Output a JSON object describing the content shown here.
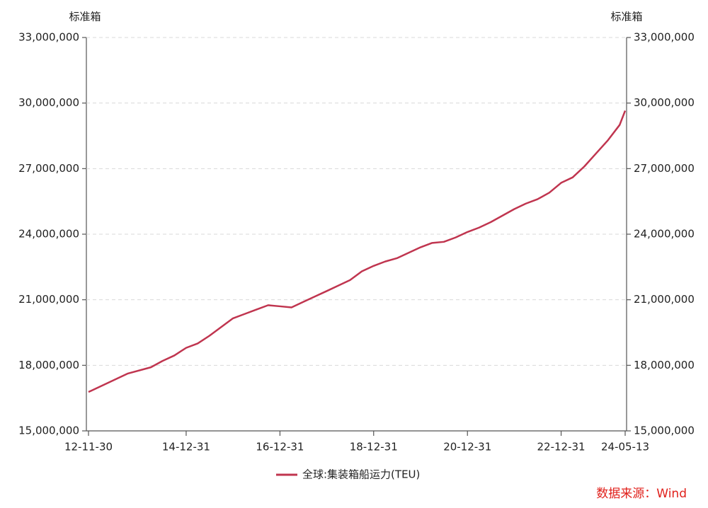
{
  "chart_data": {
    "type": "line",
    "y_label": "标准箱",
    "y2_label": "标准箱",
    "source": "数据来源：Wind",
    "x": [
      "12-11-30",
      "13-09-30",
      "14-03-31",
      "14-06-30",
      "14-09-30",
      "14-12-31",
      "15-03-31",
      "15-06-30",
      "15-09-30",
      "15-12-31",
      "16-03-31",
      "16-06-30",
      "16-09-30",
      "16-12-31",
      "17-03-31",
      "17-06-30",
      "17-09-30",
      "17-12-31",
      "18-03-31",
      "18-06-30",
      "18-09-30",
      "18-12-31",
      "19-03-31",
      "19-06-30",
      "19-09-30",
      "19-12-31",
      "20-03-31",
      "20-06-30",
      "20-09-30",
      "20-12-31",
      "21-03-31",
      "21-06-30",
      "21-09-30",
      "21-12-31",
      "22-03-31",
      "22-06-30",
      "22-09-30",
      "22-12-31",
      "23-03-31",
      "23-06-30",
      "23-09-30",
      "23-12-31",
      "24-03-31",
      "24-05-13"
    ],
    "series": [
      {
        "name": "全球:集装箱船运力(TEU)",
        "color": "#c0354f",
        "values": [
          16780000,
          17620000,
          17910000,
          18200000,
          18450000,
          18800000,
          19000000,
          19350000,
          19750000,
          20150000,
          20350000,
          20550000,
          20750000,
          20700000,
          20650000,
          20900000,
          21150000,
          21400000,
          21650000,
          21900000,
          22300000,
          22550000,
          22750000,
          22900000,
          23150000,
          23400000,
          23600000,
          23650000,
          23850000,
          24100000,
          24300000,
          24550000,
          24850000,
          25150000,
          25400000,
          25600000,
          25900000,
          26350000,
          26600000,
          27100000,
          27700000,
          28300000,
          29000000,
          29650000
        ]
      }
    ],
    "xlim": [
      "12-11-30",
      "24-05-13"
    ],
    "xticks": [
      "12-11-30",
      "14-12-31",
      "16-12-31",
      "18-12-31",
      "20-12-31",
      "22-12-31",
      "24-05-13"
    ],
    "ylim": [
      15000000,
      33000000
    ],
    "yticks": [
      {
        "value": 15000000,
        "label": "15,000,000"
      },
      {
        "value": 18000000,
        "label": "18,000,000"
      },
      {
        "value": 21000000,
        "label": "21,000,000"
      },
      {
        "value": 24000000,
        "label": "24,000,000"
      },
      {
        "value": 27000000,
        "label": "27,000,000"
      },
      {
        "value": 30000000,
        "label": "30,000,000"
      },
      {
        "value": 33000000,
        "label": "33,000,000"
      }
    ],
    "y2lim": [
      15000000,
      33000000
    ],
    "y2ticks": [
      {
        "value": 15000000,
        "label": "15,000,000"
      },
      {
        "value": 18000000,
        "label": "18,000,000"
      },
      {
        "value": 21000000,
        "label": "21,000,000"
      },
      {
        "value": 24000000,
        "label": "24,000,000"
      },
      {
        "value": 27000000,
        "label": "27,000,000"
      },
      {
        "value": 30000000,
        "label": "30,000,000"
      },
      {
        "value": 33000000,
        "label": "33,000,000"
      }
    ],
    "grid": true
  }
}
